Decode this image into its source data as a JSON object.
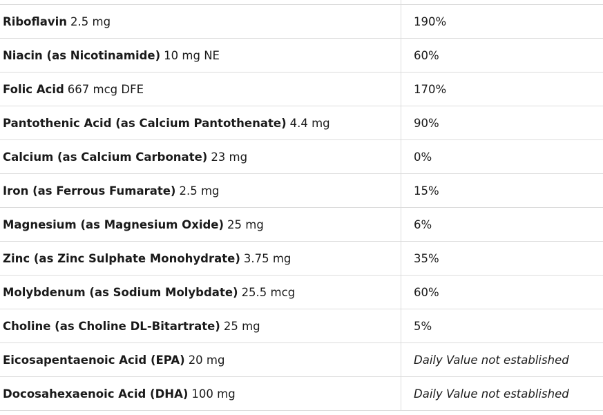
{
  "table": {
    "rows": [
      {
        "name": "Riboflavin",
        "amount": "2.5 mg",
        "dv": "190%"
      },
      {
        "name": "Niacin (as Nicotinamide)",
        "amount": "10 mg NE",
        "dv": "60%"
      },
      {
        "name": "Folic Acid",
        "amount": "667 mcg DFE",
        "dv": "170%"
      },
      {
        "name": "Pantothenic Acid (as Calcium Pantothenate)",
        "amount": "4.4 mg",
        "dv": "90%"
      },
      {
        "name": "Calcium (as Calcium Carbonate)",
        "amount": "23 mg",
        "dv": "0%"
      },
      {
        "name": "Iron (as Ferrous Fumarate)",
        "amount": "2.5 mg",
        "dv": "15%"
      },
      {
        "name": "Magnesium (as Magnesium Oxide)",
        "amount": "25 mg",
        "dv": "6%"
      },
      {
        "name": "Zinc (as Zinc Sulphate Monohydrate)",
        "amount": "3.75 mg",
        "dv": "35%"
      },
      {
        "name": "Molybdenum (as Sodium Molybdate)",
        "amount": "25.5 mcg",
        "dv": "60%"
      },
      {
        "name": "Choline (as Choline DL-Bitartrate)",
        "amount": "25 mg",
        "dv": "5%"
      },
      {
        "name": "Eicosapentaenoic Acid (EPA)",
        "amount": "20 mg",
        "dv": "Daily Value not established"
      },
      {
        "name": "Docosahexaenoic Acid (DHA)",
        "amount": "100 mg",
        "dv": "Daily Value not established"
      }
    ]
  }
}
